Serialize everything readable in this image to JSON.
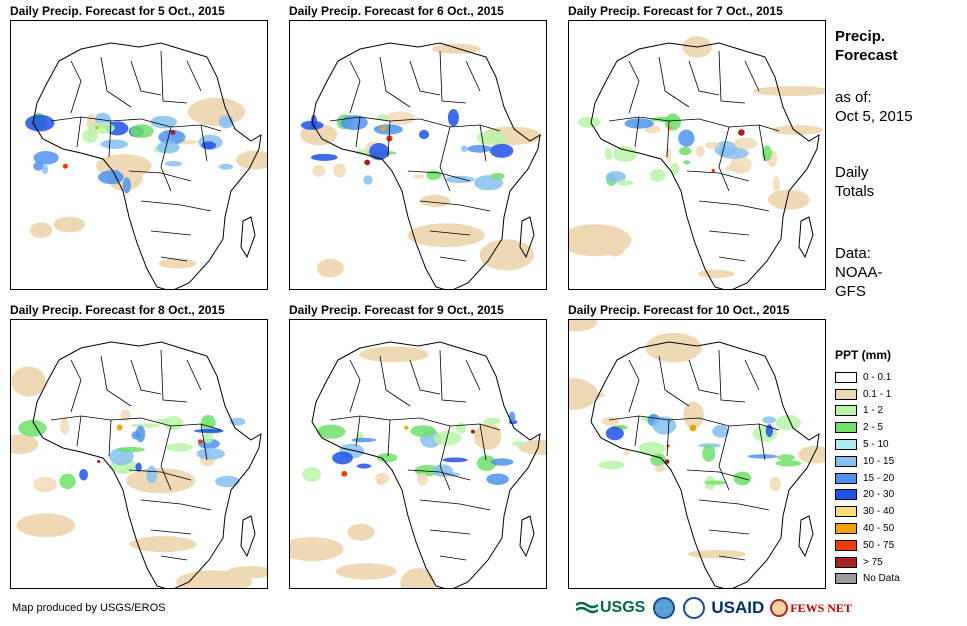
{
  "panels": [
    {
      "title": "Daily Precip. Forecast for 5 Oct., 2015"
    },
    {
      "title": "Daily Precip. Forecast for 6 Oct., 2015"
    },
    {
      "title": "Daily Precip. Forecast for 7 Oct., 2015"
    },
    {
      "title": "Daily Precip. Forecast for 8 Oct., 2015"
    },
    {
      "title": "Daily Precip. Forecast for 9 Oct., 2015"
    },
    {
      "title": "Daily Precip. Forecast for 10 Oct., 2015"
    }
  ],
  "side": {
    "title_line1": "Precip.",
    "title_line2": "Forecast",
    "asof_line1": "as of:",
    "asof_line2": "Oct 5, 2015",
    "daily_line1": "Daily",
    "daily_line2": "Totals",
    "data_line1": "Data:",
    "data_line2": "NOAA-",
    "data_line3": "GFS"
  },
  "legend": {
    "title": "PPT (mm)",
    "items": [
      {
        "label": "0 - 0.1",
        "color": "#ffffff"
      },
      {
        "label": "0.1 - 1",
        "color": "#eed9b4"
      },
      {
        "label": "1 - 2",
        "color": "#b8f4a8"
      },
      {
        "label": "2 - 5",
        "color": "#6fe06a"
      },
      {
        "label": "5 - 10",
        "color": "#aeeaf4"
      },
      {
        "label": "10 - 15",
        "color": "#86bff2"
      },
      {
        "label": "15 - 20",
        "color": "#4f92ef"
      },
      {
        "label": "20 - 30",
        "color": "#1f52e8"
      },
      {
        "label": "30 - 40",
        "color": "#f6e07a"
      },
      {
        "label": "40 - 50",
        "color": "#f3a400"
      },
      {
        "label": "50 - 75",
        "color": "#f03c0a"
      },
      {
        "label": "> 75",
        "color": "#a32222"
      },
      {
        "label": "No Data",
        "color": "#9a9a9a"
      }
    ]
  },
  "credit": "Map produced by USGS/EROS",
  "logos": {
    "usgs": "USGS",
    "usaid": "USAID",
    "fews": "FEWS NET"
  }
}
